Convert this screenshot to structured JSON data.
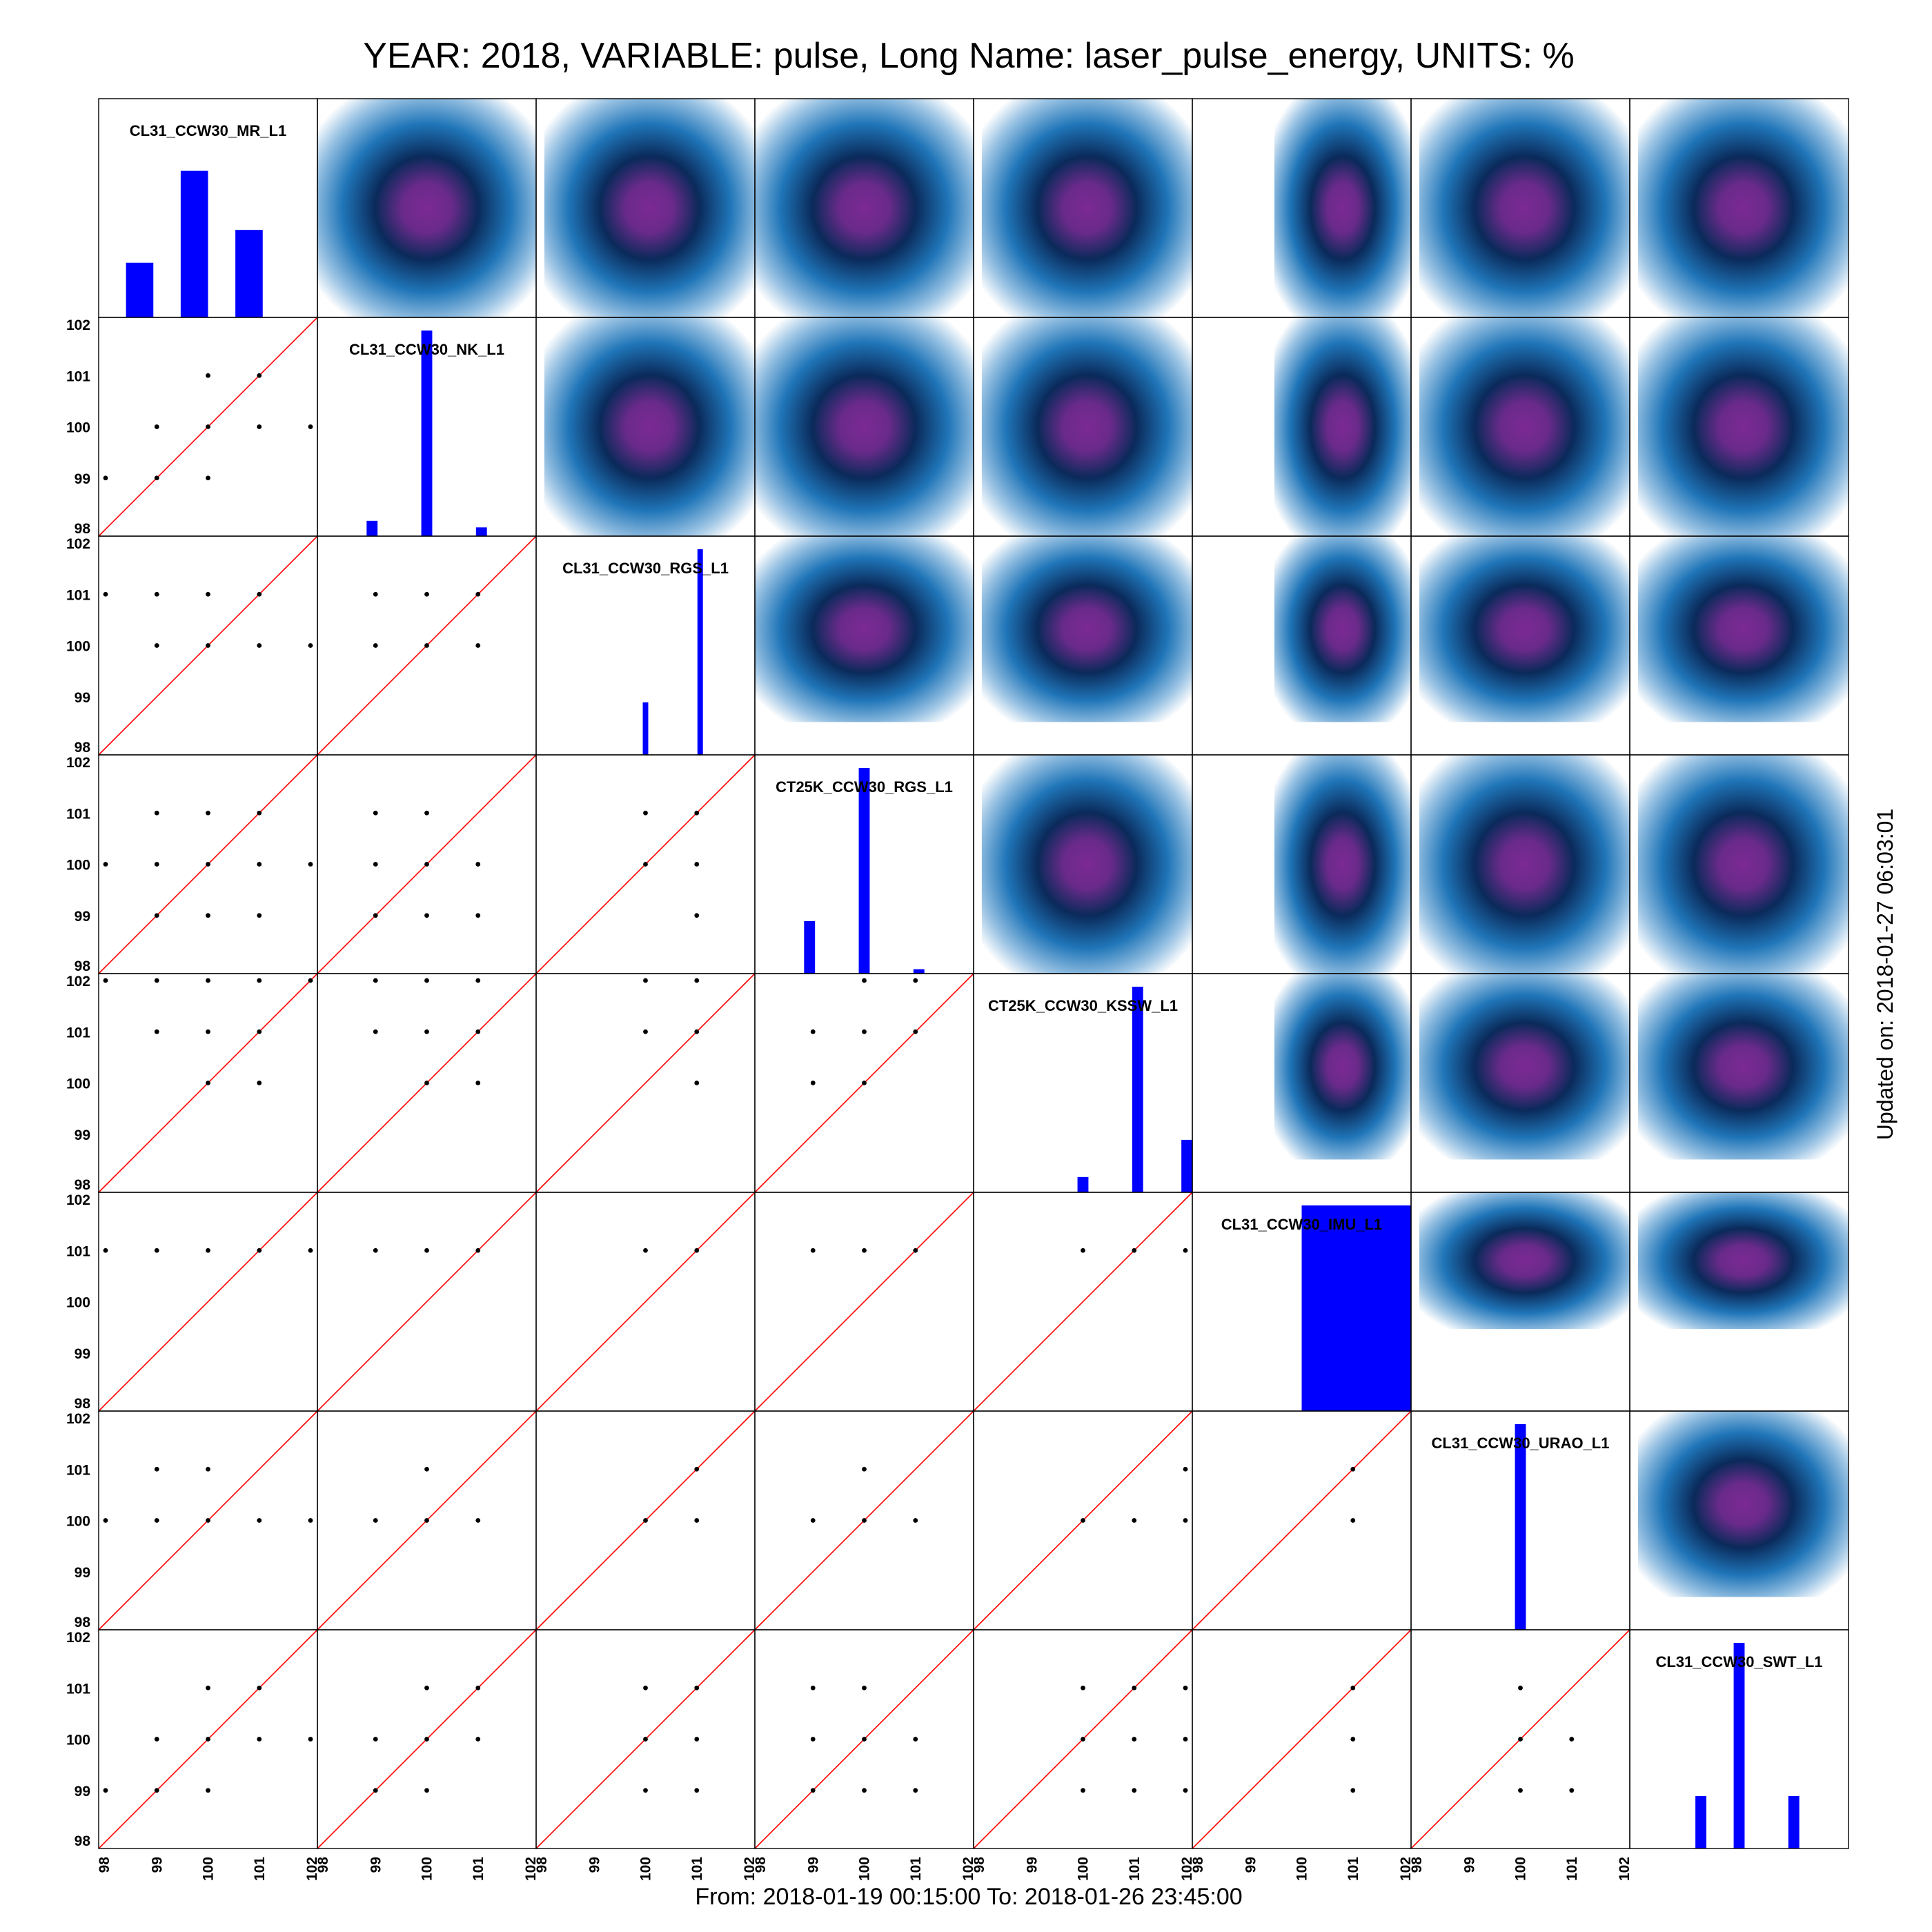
{
  "title": "YEAR: 2018, VARIABLE: pulse, Long Name: laser_pulse_energy, UNITS: %",
  "footer": "From: 2018-01-19 00:15:00 To: 2018-01-26 23:45:00",
  "updated": "Updated on: 2018-01-27 06:03:01",
  "colors": {
    "bar": "#0000ff",
    "diagonal": "#ff0000",
    "points": "#000000",
    "density_center": "#7b2a93",
    "density_mid": "#0a2a5a",
    "density_outer": "#1f75b8",
    "density_edge": "#ffffff"
  },
  "chart_data": {
    "type": "scatter_matrix",
    "stations": [
      "CL31_CCW30_MR_L1",
      "CL31_CCW30_NK_L1",
      "CL31_CCW30_RGS_L1",
      "CT25K_CCW30_RGS_L1",
      "CT25K_CCW30_KSSW_L1",
      "CL31_CCW30_IMU_L1",
      "CL31_CCW30_URAO_L1",
      "CL31_CCW30_SWT_L1"
    ],
    "axis_range": [
      98,
      102
    ],
    "tick_labels": [
      "98",
      "99",
      "100",
      "101",
      "102"
    ],
    "histograms": [
      [
        {
          "x0": 98.5,
          "x1": 99.0,
          "h": 0.25
        },
        {
          "x0": 99.5,
          "x1": 100.0,
          "h": 0.67
        },
        {
          "x0": 100.5,
          "x1": 101.0,
          "h": 0.4
        }
      ],
      [
        {
          "x0": 98.9,
          "x1": 99.1,
          "h": 0.07
        },
        {
          "x0": 99.9,
          "x1": 100.1,
          "h": 0.94
        },
        {
          "x0": 100.9,
          "x1": 101.1,
          "h": 0.04
        }
      ],
      [
        {
          "x0": 99.95,
          "x1": 100.05,
          "h": 0.24
        },
        {
          "x0": 100.95,
          "x1": 101.05,
          "h": 0.94
        }
      ],
      [
        {
          "x0": 98.9,
          "x1": 99.1,
          "h": 0.24
        },
        {
          "x0": 99.9,
          "x1": 100.1,
          "h": 0.94
        },
        {
          "x0": 100.9,
          "x1": 101.1,
          "h": 0.02
        }
      ],
      [
        {
          "x0": 99.9,
          "x1": 100.1,
          "h": 0.07
        },
        {
          "x0": 100.9,
          "x1": 101.1,
          "h": 0.94
        },
        {
          "x0": 101.8,
          "x1": 102.0,
          "h": 0.24
        }
      ],
      [
        {
          "x0": 100.0,
          "x1": 102.0,
          "h": 0.94
        }
      ],
      [
        {
          "x0": 99.9,
          "x1": 100.1,
          "h": 0.94
        }
      ],
      [
        {
          "x0": 99.2,
          "x1": 99.4,
          "h": 0.24
        },
        {
          "x0": 99.9,
          "x1": 100.1,
          "h": 0.94
        },
        {
          "x0": 100.9,
          "x1": 101.1,
          "h": 0.24
        }
      ]
    ],
    "scatter": {
      "1-0": [
        [
          98,
          99
        ],
        [
          99,
          99
        ],
        [
          99,
          100
        ],
        [
          100,
          99
        ],
        [
          100,
          100
        ],
        [
          100,
          101
        ],
        [
          101,
          100
        ],
        [
          101,
          101
        ],
        [
          102,
          100
        ]
      ],
      "2-0": [
        [
          98,
          101
        ],
        [
          99,
          100
        ],
        [
          99,
          101
        ],
        [
          100,
          100
        ],
        [
          100,
          101
        ],
        [
          101,
          100
        ],
        [
          101,
          101
        ],
        [
          102,
          100
        ]
      ],
      "2-1": [
        [
          99,
          100
        ],
        [
          99,
          101
        ],
        [
          100,
          100
        ],
        [
          100,
          101
        ],
        [
          101,
          100
        ],
        [
          101,
          101
        ]
      ],
      "3-0": [
        [
          98,
          100
        ],
        [
          99,
          99
        ],
        [
          99,
          100
        ],
        [
          99,
          101
        ],
        [
          100,
          99
        ],
        [
          100,
          100
        ],
        [
          100,
          101
        ],
        [
          101,
          99
        ],
        [
          101,
          100
        ],
        [
          101,
          101
        ],
        [
          102,
          100
        ]
      ],
      "3-1": [
        [
          99,
          99
        ],
        [
          99,
          100
        ],
        [
          99,
          101
        ],
        [
          100,
          99
        ],
        [
          100,
          100
        ],
        [
          100,
          101
        ],
        [
          101,
          99
        ],
        [
          101,
          100
        ]
      ],
      "3-2": [
        [
          100,
          100
        ],
        [
          100,
          101
        ],
        [
          101,
          99
        ],
        [
          101,
          100
        ],
        [
          101,
          101
        ]
      ],
      "4-0": [
        [
          98,
          102
        ],
        [
          99,
          101
        ],
        [
          99,
          102
        ],
        [
          100,
          100
        ],
        [
          100,
          101
        ],
        [
          100,
          102
        ],
        [
          101,
          100
        ],
        [
          101,
          101
        ],
        [
          101,
          102
        ],
        [
          102,
          102
        ]
      ],
      "4-1": [
        [
          99,
          101
        ],
        [
          99,
          102
        ],
        [
          100,
          100
        ],
        [
          100,
          101
        ],
        [
          100,
          102
        ],
        [
          101,
          100
        ],
        [
          101,
          101
        ],
        [
          101,
          102
        ]
      ],
      "4-2": [
        [
          100,
          101
        ],
        [
          100,
          102
        ],
        [
          101,
          100
        ],
        [
          101,
          101
        ],
        [
          101,
          102
        ]
      ],
      "4-3": [
        [
          99,
          100
        ],
        [
          99,
          101
        ],
        [
          100,
          100
        ],
        [
          100,
          101
        ],
        [
          100,
          102
        ],
        [
          101,
          101
        ],
        [
          101,
          102
        ]
      ],
      "5-0": [
        [
          98,
          101
        ],
        [
          99,
          101
        ],
        [
          100,
          101
        ],
        [
          101,
          101
        ],
        [
          102,
          101
        ]
      ],
      "5-1": [
        [
          99,
          101
        ],
        [
          100,
          101
        ],
        [
          101,
          101
        ]
      ],
      "5-2": [
        [
          100,
          101
        ],
        [
          101,
          101
        ]
      ],
      "5-3": [
        [
          99,
          101
        ],
        [
          100,
          101
        ],
        [
          101,
          101
        ]
      ],
      "5-4": [
        [
          100,
          101
        ],
        [
          101,
          101
        ],
        [
          102,
          101
        ]
      ],
      "6-0": [
        [
          98,
          100
        ],
        [
          99,
          100
        ],
        [
          99,
          101
        ],
        [
          100,
          100
        ],
        [
          100,
          101
        ],
        [
          101,
          100
        ],
        [
          102,
          100
        ]
      ],
      "6-1": [
        [
          99,
          100
        ],
        [
          100,
          100
        ],
        [
          100,
          101
        ],
        [
          101,
          100
        ]
      ],
      "6-2": [
        [
          100,
          100
        ],
        [
          101,
          100
        ],
        [
          101,
          101
        ]
      ],
      "6-3": [
        [
          99,
          100
        ],
        [
          100,
          100
        ],
        [
          100,
          101
        ],
        [
          101,
          100
        ]
      ],
      "6-4": [
        [
          100,
          100
        ],
        [
          101,
          100
        ],
        [
          102,
          100
        ],
        [
          102,
          101
        ]
      ],
      "6-5": [
        [
          101,
          100
        ],
        [
          101,
          101
        ]
      ],
      "7-0": [
        [
          98,
          99
        ],
        [
          99,
          99
        ],
        [
          99,
          100
        ],
        [
          100,
          99
        ],
        [
          100,
          100
        ],
        [
          100,
          101
        ],
        [
          101,
          100
        ],
        [
          101,
          101
        ],
        [
          102,
          100
        ]
      ],
      "7-1": [
        [
          99,
          99
        ],
        [
          99,
          100
        ],
        [
          100,
          99
        ],
        [
          100,
          100
        ],
        [
          100,
          101
        ],
        [
          101,
          100
        ],
        [
          101,
          101
        ]
      ],
      "7-2": [
        [
          100,
          99
        ],
        [
          100,
          100
        ],
        [
          100,
          101
        ],
        [
          101,
          99
        ],
        [
          101,
          100
        ],
        [
          101,
          101
        ]
      ],
      "7-3": [
        [
          99,
          99
        ],
        [
          99,
          100
        ],
        [
          99,
          101
        ],
        [
          100,
          99
        ],
        [
          100,
          100
        ],
        [
          100,
          101
        ],
        [
          101,
          99
        ],
        [
          101,
          100
        ]
      ],
      "7-4": [
        [
          100,
          99
        ],
        [
          100,
          100
        ],
        [
          100,
          101
        ],
        [
          101,
          99
        ],
        [
          101,
          100
        ],
        [
          101,
          101
        ],
        [
          102,
          99
        ],
        [
          102,
          100
        ],
        [
          102,
          101
        ]
      ],
      "7-5": [
        [
          101,
          99
        ],
        [
          101,
          100
        ],
        [
          101,
          101
        ]
      ],
      "7-6": [
        [
          100,
          99
        ],
        [
          100,
          100
        ],
        [
          100,
          101
        ],
        [
          101,
          99
        ],
        [
          101,
          100
        ]
      ]
    },
    "density_extent": {
      "0-1": [
        98,
        102,
        98,
        102
      ],
      "0-2": [
        98.15,
        102,
        98,
        102
      ],
      "0-3": [
        98,
        102,
        98,
        102
      ],
      "0-4": [
        98.15,
        102,
        98,
        102
      ],
      "0-5": [
        99.5,
        102,
        98,
        102
      ],
      "0-6": [
        98.15,
        102,
        98,
        102
      ],
      "0-7": [
        98.15,
        102,
        98,
        102
      ],
      "1-2": [
        98.15,
        102,
        98,
        102
      ],
      "1-3": [
        98,
        102,
        98,
        102
      ],
      "1-4": [
        98.15,
        102,
        98,
        102
      ],
      "1-5": [
        99.5,
        102,
        98,
        102
      ],
      "1-6": [
        98.15,
        102,
        98,
        102
      ],
      "1-7": [
        98.15,
        102,
        98,
        102
      ],
      "2-3": [
        98,
        102,
        98.6,
        102
      ],
      "2-4": [
        98.15,
        102,
        98.6,
        102
      ],
      "2-5": [
        99.5,
        102,
        98.6,
        102
      ],
      "2-6": [
        98.15,
        102,
        98.6,
        102
      ],
      "2-7": [
        98.15,
        102,
        98.6,
        102
      ],
      "3-4": [
        98.15,
        102,
        98,
        102
      ],
      "3-5": [
        99.5,
        102,
        98,
        102
      ],
      "3-6": [
        98.15,
        102,
        98,
        102
      ],
      "3-7": [
        98.15,
        102,
        98,
        102
      ],
      "4-5": [
        99.5,
        102,
        98.6,
        102
      ],
      "4-6": [
        98.15,
        102,
        98.6,
        102
      ],
      "4-7": [
        98.15,
        102,
        98.6,
        102
      ],
      "5-6": [
        98.15,
        102,
        99.5,
        102
      ],
      "5-7": [
        98.15,
        102,
        99.5,
        102
      ],
      "6-7": [
        98.15,
        102,
        98.6,
        102
      ]
    }
  }
}
